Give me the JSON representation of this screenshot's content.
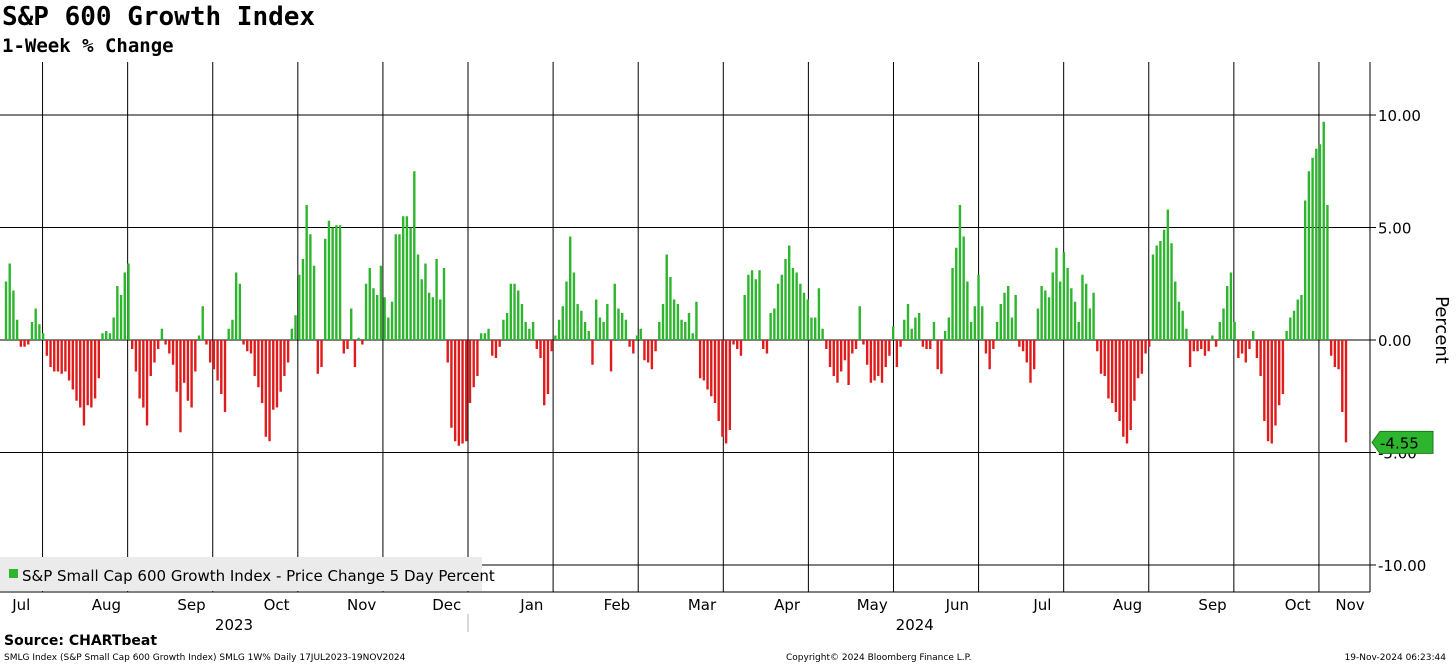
{
  "header": {
    "title": "S&P 600 Growth Index",
    "subtitle": "1-Week % Change"
  },
  "footer": {
    "source": "Source: CHARTbeat",
    "ticker_info": "SMLG Index (S&P Small Cap 600 Growth Index) SMLG 1W%  Daily 17JUL2023-19NOV2024",
    "copyright": "Copyright© 2024 Bloomberg Finance L.P.",
    "timestamp": "19-Nov-2024 06:23:44"
  },
  "colors": {
    "positive": "#2db52d",
    "negative": "#e01b1b",
    "grid": "#000000",
    "legend_bg": "#ebebeb",
    "last_label": "#2db52d"
  },
  "chart_data": {
    "type": "bar",
    "title": "S&P 600 Growth Index",
    "subtitle": "1-Week % Change",
    "ylabel": "Percent",
    "ylim": [
      -11,
      12
    ],
    "yticks": [
      "10.00",
      "5.00",
      "0.00",
      "-5.00",
      "-10.00"
    ],
    "ytick_values": [
      10,
      5,
      0,
      -5,
      -10
    ],
    "x_range": [
      0,
      16.1
    ],
    "month_labels": [
      "Jul",
      "Aug",
      "Sep",
      "Oct",
      "Nov",
      "Dec",
      "Jan",
      "Feb",
      "Mar",
      "Apr",
      "May",
      "Jun",
      "Jul",
      "Aug",
      "Sep",
      "Oct",
      "Nov"
    ],
    "month_positions": [
      0.25,
      1.25,
      2.25,
      3.25,
      4.25,
      5.25,
      6.25,
      7.25,
      8.25,
      9.25,
      10.25,
      11.25,
      12.25,
      13.25,
      14.25,
      15.25,
      16.25
    ],
    "gridline_positions": [
      0.5,
      1.5,
      2.5,
      3.5,
      4.5,
      5.5,
      6.5,
      7.5,
      8.5,
      9.5,
      10.5,
      11.5,
      12.5,
      13.5,
      14.5,
      15.5
    ],
    "year_labels": [
      {
        "label": "2023",
        "pos": 2.75
      },
      {
        "label": "2024",
        "pos": 10.75
      }
    ],
    "year_divider_pos": 5.5,
    "grid": true,
    "legend": {
      "position": "bottom-left",
      "entries": [
        "S&P Small Cap 600 Growth Index - Price Change 5 Day Percent"
      ]
    },
    "last_value": {
      "label": "-4.55",
      "value": -4.55
    },
    "series": [
      {
        "name": "S&P Small Cap 600 Growth Index - Price Change 5 Day Percent",
        "values": [
          2.6,
          3.4,
          2.2,
          0.9,
          -0.3,
          -0.3,
          -0.2,
          0.8,
          1.4,
          0.7,
          0.3,
          -0.7,
          -1.2,
          -1.4,
          -1.4,
          -1.5,
          -1.4,
          -1.8,
          -2.2,
          -2.7,
          -3.0,
          -3.8,
          -2.9,
          -3.0,
          -2.6,
          -1.7,
          0.3,
          0.4,
          0.3,
          1.0,
          2.4,
          2.0,
          3.0,
          3.4,
          -0.4,
          -1.4,
          -2.6,
          -3.0,
          -3.8,
          -1.6,
          -1.0,
          -0.4,
          0.5,
          -0.2,
          -0.6,
          -1.1,
          -2.3,
          -4.1,
          -1.9,
          -2.7,
          -3.0,
          -1.4,
          0.2,
          1.5,
          -0.2,
          -1.0,
          -1.3,
          -1.8,
          -2.4,
          -3.2,
          0.5,
          0.9,
          3.0,
          2.5,
          -0.2,
          -0.5,
          -0.6,
          -1.6,
          -2.1,
          -2.8,
          -4.3,
          -4.5,
          -3.1,
          -3.0,
          -2.3,
          -1.6,
          -1.0,
          0.5,
          1.1,
          2.9,
          3.6,
          6.0,
          4.7,
          3.3,
          -1.5,
          -1.2,
          4.5,
          5.3,
          5.0,
          5.1,
          5.1,
          -0.6,
          -0.4,
          1.4,
          -1.2,
          0.1,
          -0.2,
          2.5,
          3.2,
          2.3,
          2.0,
          3.3,
          1.9,
          1.0,
          1.7,
          4.7,
          4.7,
          5.5,
          5.5,
          5.0,
          7.5,
          3.8,
          2.7,
          3.4,
          2.1,
          1.9,
          3.6,
          1.8,
          3.2,
          -1.0,
          -3.9,
          -4.5,
          -4.7,
          -4.6,
          -4.5,
          -2.8,
          -2.1,
          -1.6,
          0.3,
          0.3,
          0.5,
          -0.7,
          -0.8,
          -0.3,
          0.9,
          1.2,
          2.5,
          2.5,
          2.2,
          1.6,
          0.8,
          0.5,
          0.8,
          -0.4,
          -0.8,
          -2.9,
          -2.4,
          -0.5,
          0.2,
          0.9,
          1.5,
          2.6,
          4.6,
          3.0,
          1.6,
          1.3,
          0.8,
          0.4,
          -1.1,
          1.8,
          1.0,
          0.8,
          1.6,
          -1.4,
          2.5,
          1.4,
          1.2,
          0.9,
          -0.3,
          -0.6,
          0.2,
          0.5,
          -0.9,
          -1.0,
          -1.3,
          -0.5,
          0.8,
          1.6,
          3.8,
          2.8,
          1.8,
          1.6,
          0.9,
          0.8,
          1.2,
          0.3,
          1.7,
          -1.7,
          -1.8,
          -2.2,
          -2.5,
          -2.8,
          -3.6,
          -4.3,
          -4.6,
          -4.0,
          -0.2,
          -0.4,
          -0.7,
          2.0,
          2.9,
          3.1,
          2.7,
          3.1,
          -0.4,
          -0.6,
          1.2,
          1.4,
          2.5,
          2.9,
          3.6,
          4.2,
          3.2,
          3.0,
          2.5,
          2.1,
          1.8,
          1.0,
          1.0,
          2.3,
          0.5,
          -0.4,
          -1.2,
          -1.6,
          -1.9,
          -1.4,
          -0.9,
          -2.0,
          -0.6,
          -0.4,
          1.5,
          -0.2,
          -1.1,
          -1.9,
          -1.8,
          -1.6,
          -1.9,
          -1.2,
          -0.7,
          0.6,
          -1.2,
          -0.3,
          0.9,
          1.6,
          0.5,
          1.0,
          1.2,
          -0.3,
          -0.4,
          -0.4,
          0.8,
          -1.3,
          -1.5,
          0.4,
          1.0,
          3.2,
          4.1,
          6.0,
          4.6,
          2.6,
          0.8,
          1.5,
          2.9,
          1.5,
          -0.6,
          -1.3,
          -0.4,
          0.8,
          1.6,
          2.1,
          2.4,
          1.0,
          2.0,
          -0.3,
          -0.5,
          -1.0,
          -1.9,
          -1.3,
          1.4,
          2.4,
          2.2,
          1.9,
          3.0,
          4.1,
          2.6,
          3.9,
          3.2,
          2.3,
          1.7,
          0.8,
          2.9,
          2.5,
          1.4,
          2.1,
          -0.5,
          -1.5,
          -1.6,
          -2.6,
          -2.8,
          -3.2,
          -3.6,
          -4.3,
          -4.6,
          -4.0,
          -2.7,
          -1.7,
          -1.5,
          -0.6,
          -0.3,
          3.8,
          4.2,
          4.4,
          4.9,
          5.8,
          4.3,
          2.6,
          1.7,
          1.3,
          0.5,
          -1.2,
          -0.5,
          -0.5,
          -0.4,
          -0.7,
          -0.5,
          0.2,
          -0.3,
          0.8,
          1.4,
          2.4,
          3.0,
          0.8,
          -0.8,
          -0.6,
          -1.0,
          -0.4,
          0.4,
          -0.8,
          -1.6,
          -3.6,
          -4.5,
          -4.6,
          -3.8,
          -2.9,
          -2.4,
          0.4,
          1.0,
          1.3,
          1.8,
          2.0,
          6.2,
          7.5,
          8.1,
          8.5,
          8.7,
          9.7,
          6.0,
          -0.7,
          -1.2,
          -1.3,
          -3.2,
          -4.55
        ]
      }
    ]
  }
}
